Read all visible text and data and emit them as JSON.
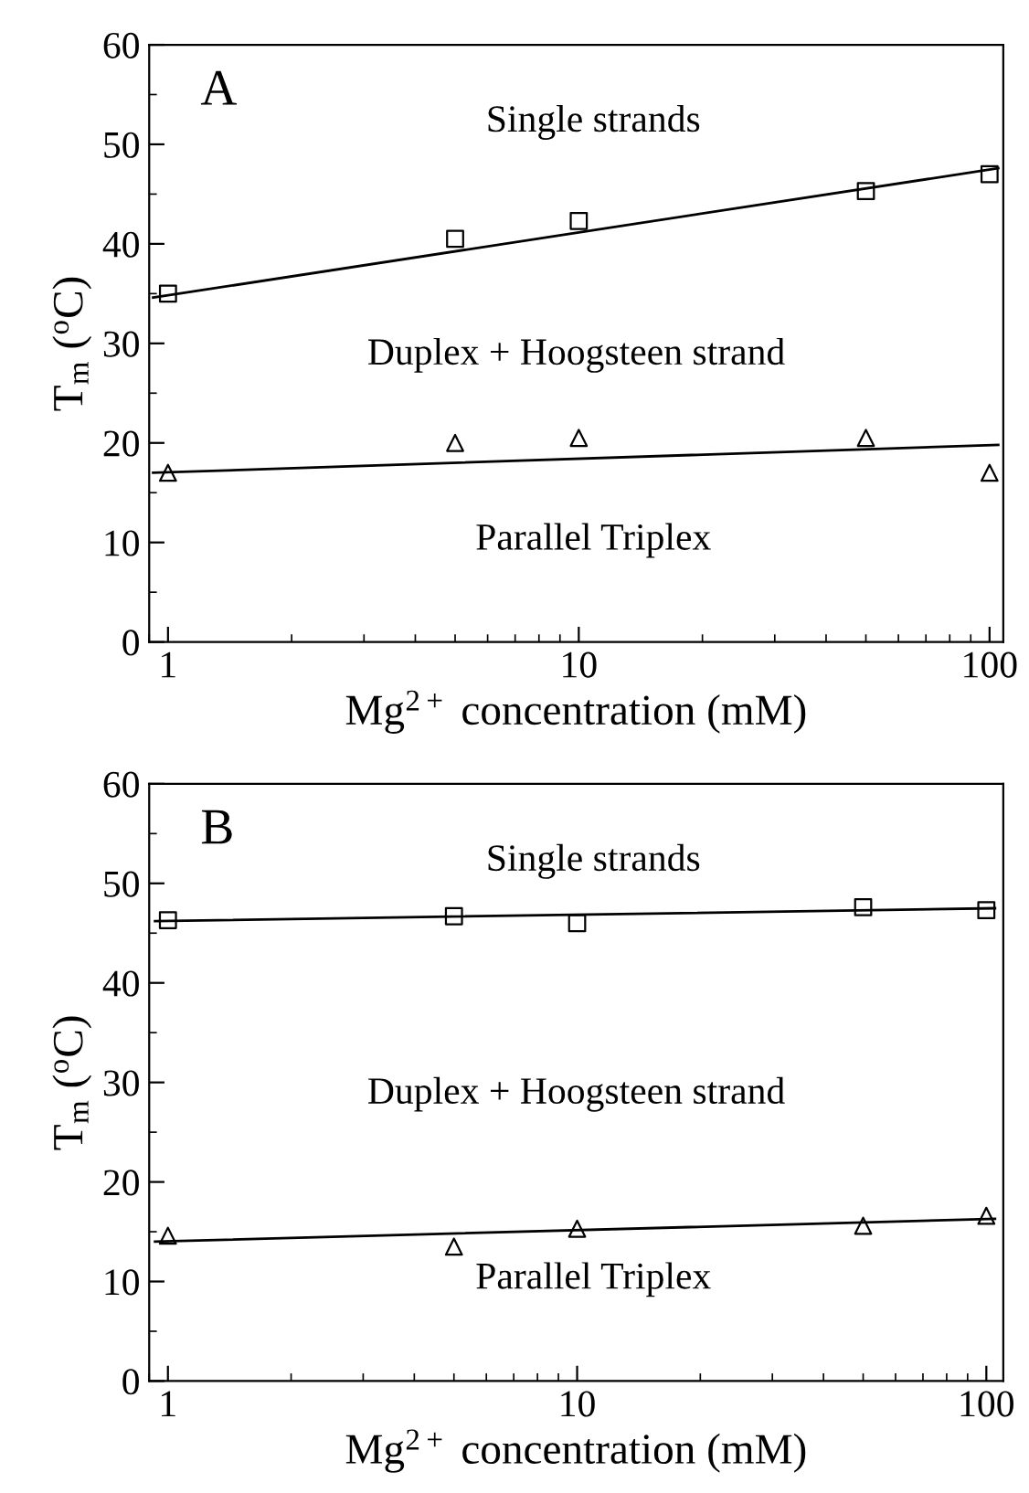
{
  "chart_data": [
    {
      "type": "scatter",
      "title": "A",
      "xlabel": "Mg$^{2+}$ concentration (mM)",
      "ylabel": "T$_{m}$ ($^{o}$C)",
      "log": "x",
      "xlim": [
        0.9,
        108
      ],
      "ylim": [
        0,
        60
      ],
      "xticks": [
        1,
        10,
        100
      ],
      "yticks": [
        0,
        10,
        20,
        30,
        40,
        50,
        60
      ],
      "grid": false,
      "legend": false,
      "annotations": [
        "Single strands",
        "Duplex + Hoogsteen strand",
        "Parallel Triplex"
      ],
      "series": [
        {
          "marker": "square",
          "color": "#000000",
          "x": [
            1,
            5,
            10,
            50,
            100
          ],
          "values": [
            35,
            40.5,
            42.3,
            45.3,
            47
          ]
        },
        {
          "marker": "triangle",
          "color": "#000000",
          "x": [
            1,
            5,
            10,
            50,
            100
          ],
          "values": [
            17,
            20,
            20.5,
            20.5,
            17
          ]
        },
        {
          "type": "line",
          "color": "#000000",
          "x": [
            0.92,
            105
          ],
          "values": [
            34.6,
            47.6
          ]
        },
        {
          "type": "line",
          "color": "#000000",
          "x": [
            0.92,
            105
          ],
          "values": [
            17,
            19.8
          ]
        }
      ]
    },
    {
      "type": "scatter",
      "title": "B",
      "xlabel": "Mg$^{2+}$ concentration (mM)",
      "ylabel": "T$_{m}$ ($^{o}$C)",
      "log": "x",
      "xlim": [
        0.9,
        110
      ],
      "ylim": [
        0,
        60
      ],
      "xticks": [
        1,
        10,
        100
      ],
      "yticks": [
        0,
        10,
        20,
        30,
        40,
        50,
        60
      ],
      "grid": false,
      "legend": false,
      "annotations": [
        "Single strands",
        "Duplex + Hoogsteen strand",
        "Parallel Triplex"
      ],
      "series": [
        {
          "marker": "square",
          "color": "#000000",
          "x": [
            1,
            5,
            10,
            50,
            100
          ],
          "values": [
            46.3,
            46.7,
            46,
            47.6,
            47.3
          ]
        },
        {
          "marker": "triangle",
          "color": "#000000",
          "x": [
            1,
            5,
            10,
            50,
            100
          ],
          "values": [
            14.6,
            13.5,
            15.3,
            15.6,
            16.6
          ]
        },
        {
          "type": "line",
          "color": "#000000",
          "x": [
            0.93,
            105
          ],
          "values": [
            46.2,
            47.5
          ]
        },
        {
          "type": "line",
          "color": "#000000",
          "x": [
            0.93,
            105
          ],
          "values": [
            14,
            16.3
          ]
        }
      ]
    }
  ]
}
